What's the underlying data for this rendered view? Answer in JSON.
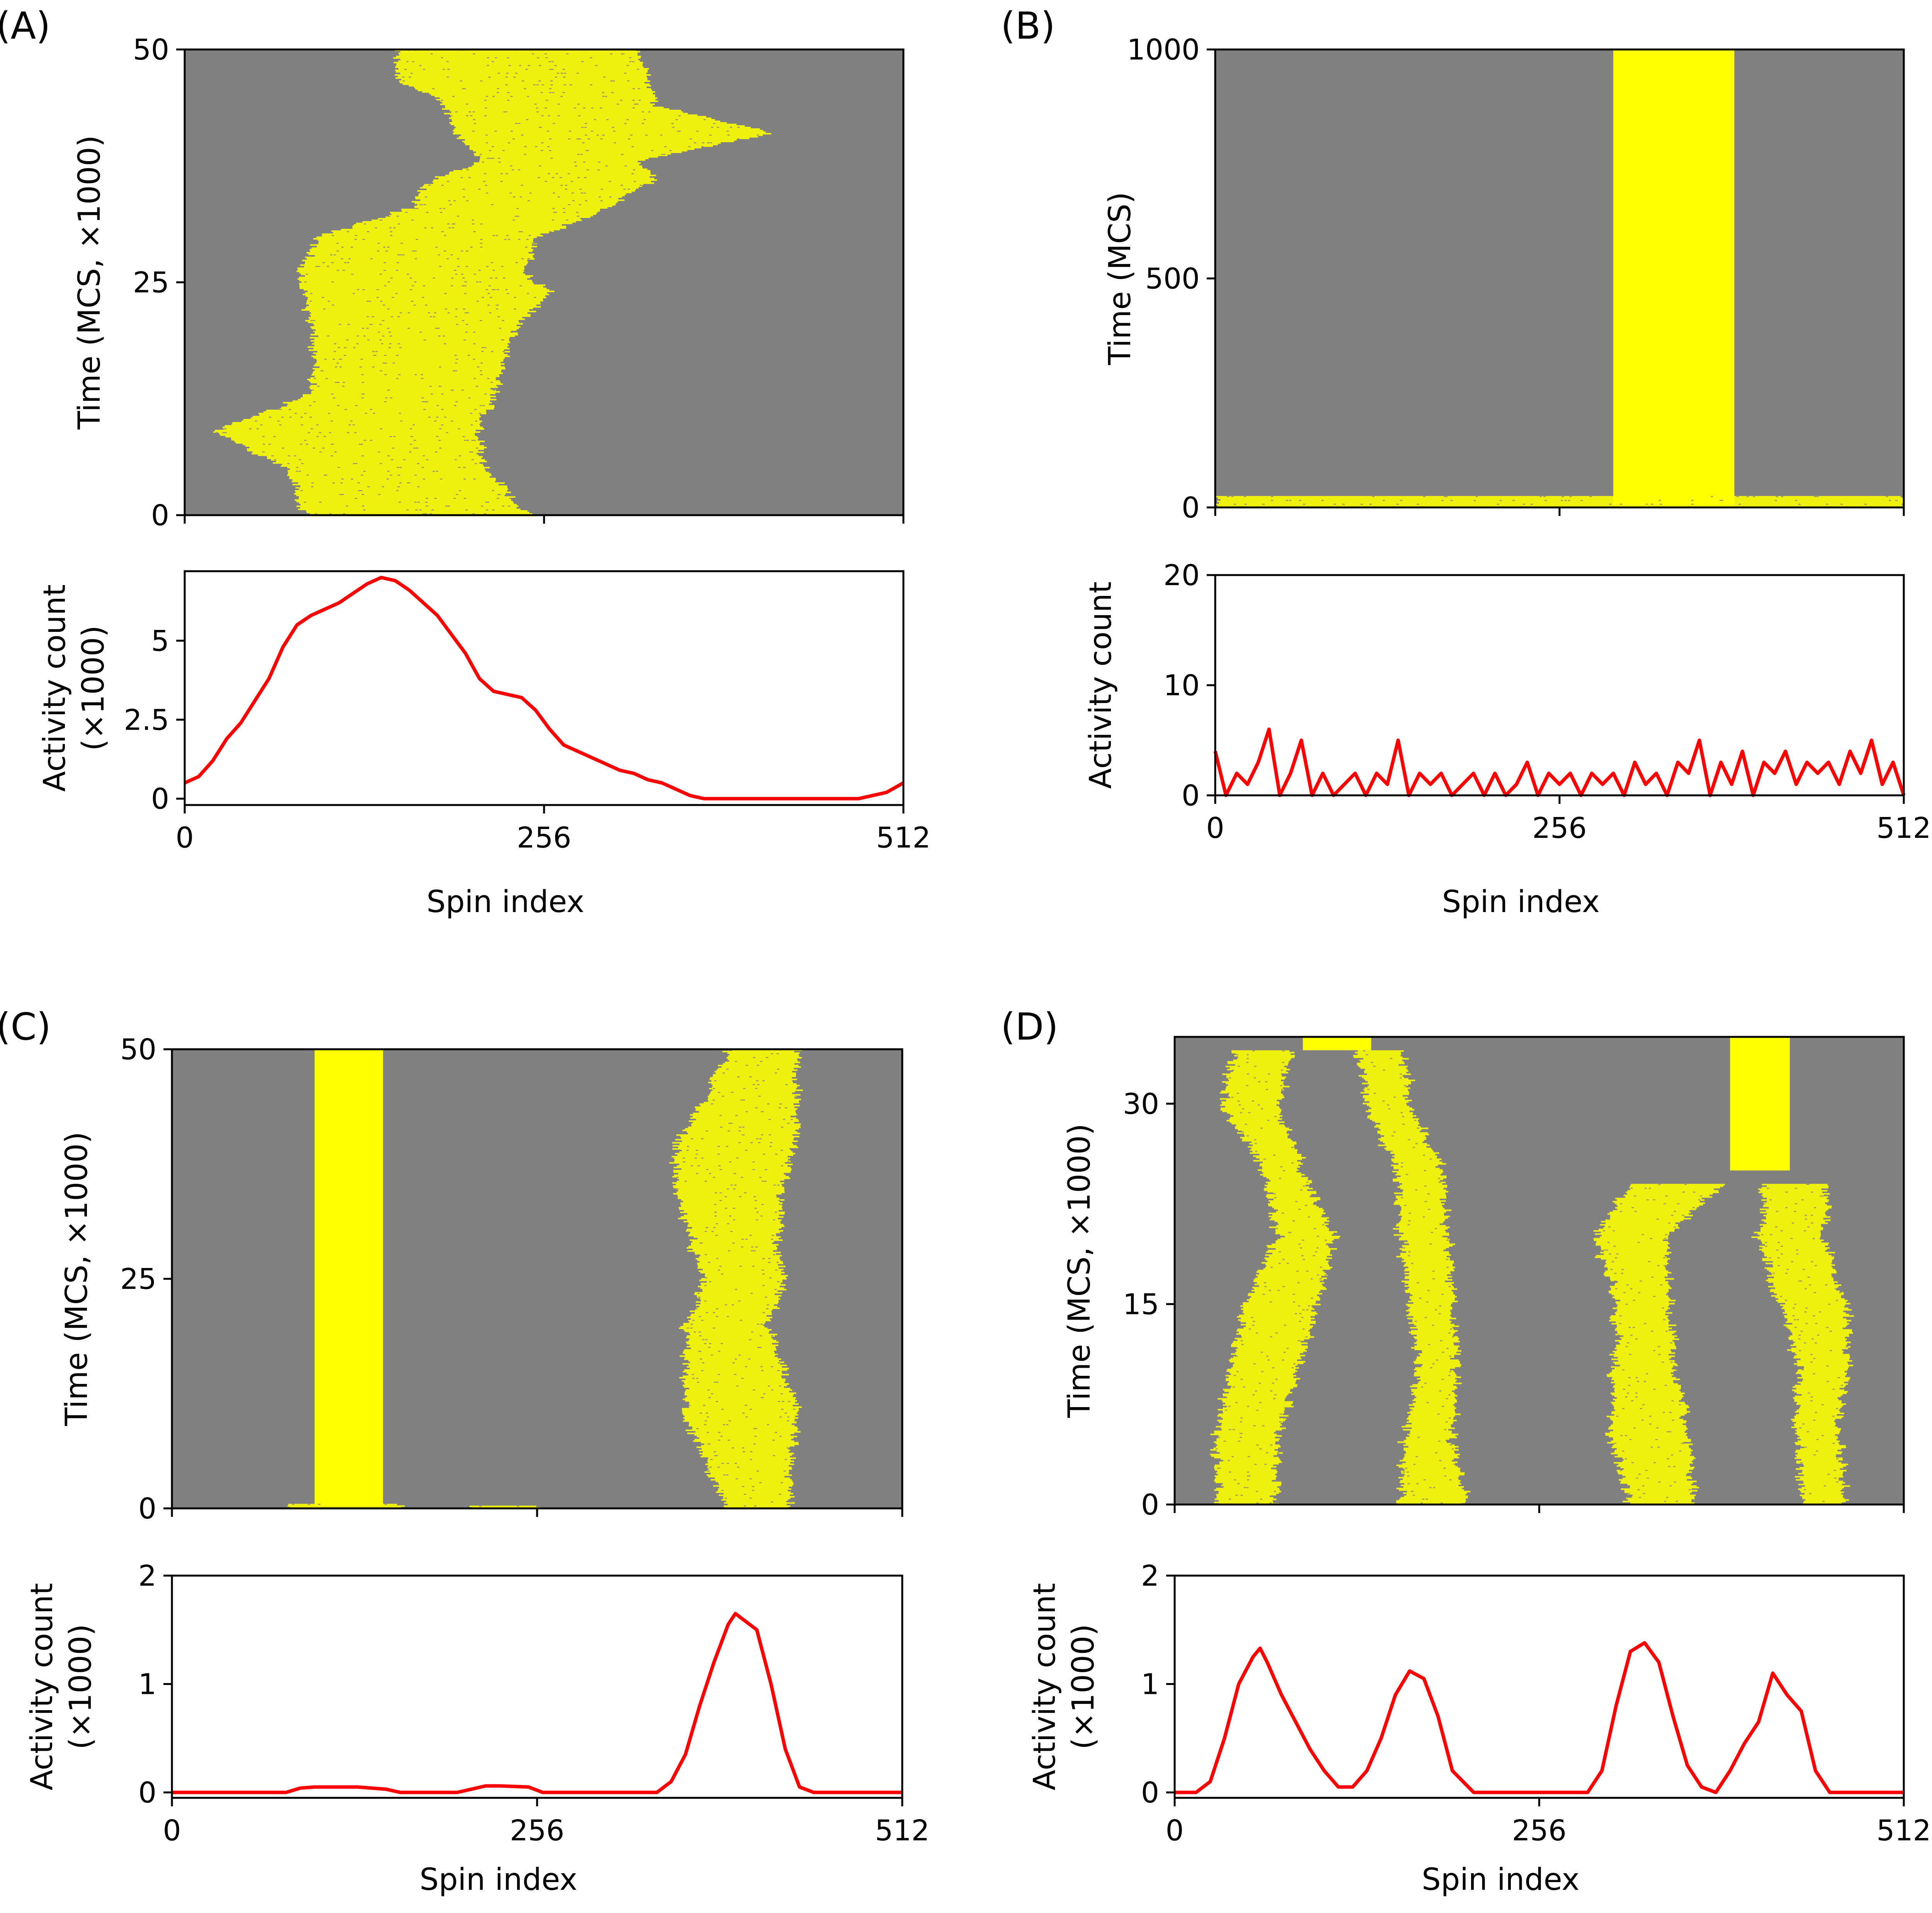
{
  "colors": {
    "background": "#808080",
    "active": "#ffff00",
    "activity_line": "#ff0000",
    "axes": "#000000"
  },
  "chart_data": [
    {
      "panel": "(A)",
      "raster": {
        "type": "heatmap",
        "ylabel": "Time (MCS, ×1000)",
        "xlim": [
          0,
          512
        ],
        "ylim": [
          0,
          50
        ],
        "xticks": [
          0,
          256,
          512
        ],
        "yticks": [
          0,
          25,
          50
        ],
        "ytick_labels": [
          "0",
          "25",
          "50"
        ],
        "bands": [
          {
            "style": "noisy",
            "edges": [
              {
                "t": 0,
                "l": 85,
                "r": 246
              },
              {
                "t": 5,
                "l": 75,
                "r": 215
              },
              {
                "t": 9,
                "l": 20,
                "r": 210
              },
              {
                "t": 11,
                "l": 58,
                "r": 215
              },
              {
                "t": 13,
                "l": 88,
                "r": 220
              },
              {
                "t": 16,
                "l": 92,
                "r": 225
              },
              {
                "t": 20,
                "l": 90,
                "r": 235
              },
              {
                "t": 24,
                "l": 85,
                "r": 262
              },
              {
                "t": 26,
                "l": 80,
                "r": 240
              },
              {
                "t": 30,
                "l": 98,
                "r": 255
              },
              {
                "t": 33,
                "l": 160,
                "r": 300
              },
              {
                "t": 36,
                "l": 175,
                "r": 335
              },
              {
                "t": 38,
                "l": 210,
                "r": 320
              },
              {
                "t": 41,
                "l": 195,
                "r": 420
              },
              {
                "t": 44,
                "l": 185,
                "r": 335
              },
              {
                "t": 47,
                "l": 150,
                "r": 330
              },
              {
                "t": 50,
                "l": 150,
                "r": 320
              }
            ]
          }
        ]
      },
      "activity": {
        "type": "line",
        "xlabel": "Spin index",
        "ylabel": "Activity count (×1000)",
        "ylabel_lines": [
          "Activity count",
          "(×1000)"
        ],
        "xlim": [
          0,
          512
        ],
        "ylim": [
          -0.2,
          7.2
        ],
        "xticks": [
          0,
          256,
          512
        ],
        "yticks": [
          0,
          2.5,
          5
        ],
        "ytick_labels": [
          "0",
          "2.5",
          "5"
        ],
        "x": [
          0,
          10,
          20,
          30,
          40,
          50,
          60,
          70,
          80,
          90,
          100,
          110,
          120,
          130,
          140,
          150,
          160,
          170,
          180,
          190,
          200,
          210,
          220,
          230,
          240,
          250,
          260,
          270,
          280,
          290,
          300,
          310,
          320,
          330,
          340,
          350,
          360,
          370,
          380,
          390,
          400,
          410,
          420,
          430,
          440,
          450,
          460,
          470,
          480,
          490,
          500,
          512
        ],
        "values": [
          0.5,
          0.7,
          1.2,
          1.9,
          2.4,
          3.1,
          3.8,
          4.8,
          5.5,
          5.8,
          6.0,
          6.2,
          6.5,
          6.8,
          7.0,
          6.9,
          6.6,
          6.2,
          5.8,
          5.2,
          4.6,
          3.8,
          3.4,
          3.3,
          3.2,
          2.8,
          2.2,
          1.7,
          1.5,
          1.3,
          1.1,
          0.9,
          0.8,
          0.6,
          0.5,
          0.3,
          0.1,
          0.0,
          0.0,
          0.0,
          0.0,
          0.0,
          0.0,
          0.0,
          0.0,
          0.0,
          0.0,
          0.0,
          0.0,
          0.1,
          0.2,
          0.5
        ]
      }
    },
    {
      "panel": "(B)",
      "raster": {
        "type": "heatmap",
        "ylabel": "Time (MCS)",
        "xlim": [
          0,
          512
        ],
        "ylim": [
          0,
          1000
        ],
        "xticks": [
          0,
          256,
          512
        ],
        "yticks": [
          0,
          500,
          1000
        ],
        "ytick_labels": [
          "0",
          "500",
          "1000"
        ],
        "bands": [
          {
            "style": "solid",
            "edges": [
              {
                "t": 0,
                "l": 296,
                "r": 386
              },
              {
                "t": 1000,
                "l": 296,
                "r": 386
              }
            ]
          },
          {
            "style": "noisy",
            "edges": [
              {
                "t": 0,
                "l": 0,
                "r": 512
              },
              {
                "t": 25,
                "l": 0,
                "r": 512
              }
            ]
          }
        ]
      },
      "activity": {
        "type": "line",
        "xlabel": "Spin index",
        "ylabel": "Activity count",
        "ylabel_lines": [
          "Activity count"
        ],
        "xlim": [
          0,
          512
        ],
        "ylim": [
          0,
          20
        ],
        "xticks": [
          0,
          256,
          512
        ],
        "yticks": [
          0,
          10,
          20
        ],
        "ytick_labels": [
          "0",
          "10",
          "20"
        ],
        "x": [
          0,
          8,
          16,
          24,
          32,
          40,
          48,
          56,
          64,
          72,
          80,
          88,
          96,
          104,
          112,
          120,
          128,
          136,
          144,
          152,
          160,
          168,
          176,
          184,
          192,
          200,
          208,
          216,
          224,
          232,
          240,
          248,
          256,
          264,
          272,
          280,
          288,
          296,
          304,
          312,
          320,
          328,
          336,
          344,
          352,
          360,
          368,
          376,
          384,
          392,
          400,
          408,
          416,
          424,
          432,
          440,
          448,
          456,
          464,
          472,
          480,
          488,
          496,
          504,
          512
        ],
        "values": [
          4,
          0,
          2,
          1,
          3,
          6,
          0,
          2,
          5,
          0,
          2,
          0,
          1,
          2,
          0,
          2,
          1,
          5,
          0,
          2,
          1,
          2,
          0,
          1,
          2,
          0,
          2,
          0,
          1,
          3,
          0,
          2,
          1,
          2,
          0,
          2,
          1,
          2,
          0,
          3,
          1,
          2,
          0,
          3,
          2,
          5,
          0,
          3,
          1,
          4,
          0,
          3,
          2,
          4,
          1,
          3,
          2,
          3,
          1,
          4,
          2,
          5,
          1,
          3,
          0
        ]
      }
    },
    {
      "panel": "(C)",
      "raster": {
        "type": "heatmap",
        "ylabel": "Time (MCS, ×1000)",
        "xlim": [
          0,
          512
        ],
        "ylim": [
          0,
          50
        ],
        "xticks": [
          0,
          256,
          512
        ],
        "yticks": [
          0,
          25,
          50
        ],
        "ytick_labels": [
          "0",
          "25",
          "50"
        ],
        "bands": [
          {
            "style": "solid",
            "edges": [
              {
                "t": 0.3,
                "l": 100,
                "r": 148
              },
              {
                "t": 50,
                "l": 100,
                "r": 148
              }
            ]
          },
          {
            "style": "noisy",
            "edges": [
              {
                "t": 0,
                "l": 82,
                "r": 160
              },
              {
                "t": 0.5,
                "l": 82,
                "r": 160
              }
            ]
          },
          {
            "style": "noisy",
            "edges": [
              {
                "t": 0,
                "l": 210,
                "r": 255
              },
              {
                "t": 0.3,
                "l": 210,
                "r": 255
              }
            ]
          },
          {
            "style": "noisy",
            "edges": [
              {
                "t": 0,
                "l": 390,
                "r": 435
              },
              {
                "t": 5,
                "l": 372,
                "r": 432
              },
              {
                "t": 10,
                "l": 360,
                "r": 440
              },
              {
                "t": 15,
                "l": 358,
                "r": 428
              },
              {
                "t": 20,
                "l": 360,
                "r": 418
              },
              {
                "t": 25,
                "l": 372,
                "r": 428
              },
              {
                "t": 30,
                "l": 362,
                "r": 425
              },
              {
                "t": 35,
                "l": 352,
                "r": 428
              },
              {
                "t": 40,
                "l": 355,
                "r": 438
              },
              {
                "t": 45,
                "l": 375,
                "r": 438
              },
              {
                "t": 50,
                "l": 390,
                "r": 438
              }
            ]
          }
        ]
      },
      "activity": {
        "type": "line",
        "xlabel": "Spin index",
        "ylabel": "Activity count (×1000)",
        "ylabel_lines": [
          "Activity count",
          "(×1000)"
        ],
        "xlim": [
          0,
          512
        ],
        "ylim": [
          -0.05,
          2
        ],
        "xticks": [
          0,
          256,
          512
        ],
        "yticks": [
          0,
          1,
          2
        ],
        "ytick_labels": [
          "0",
          "1",
          "2"
        ],
        "x": [
          0,
          20,
          40,
          60,
          80,
          90,
          100,
          110,
          130,
          150,
          160,
          180,
          200,
          210,
          220,
          230,
          250,
          260,
          280,
          300,
          320,
          340,
          350,
          360,
          370,
          380,
          390,
          395,
          400,
          410,
          420,
          430,
          440,
          450,
          470,
          490,
          512
        ],
        "values": [
          0,
          0,
          0,
          0,
          0,
          0.04,
          0.05,
          0.05,
          0.05,
          0.03,
          0,
          0,
          0,
          0.03,
          0.06,
          0.06,
          0.05,
          0,
          0,
          0,
          0,
          0,
          0.1,
          0.35,
          0.8,
          1.2,
          1.55,
          1.65,
          1.6,
          1.5,
          1.0,
          0.4,
          0.05,
          0,
          0,
          0,
          0
        ]
      }
    },
    {
      "panel": "(D)",
      "raster": {
        "type": "heatmap",
        "ylabel": "Time (MCS, ×1000)",
        "xlim": [
          0,
          512
        ],
        "ylim": [
          0,
          35
        ],
        "xticks": [
          0,
          256,
          512
        ],
        "yticks": [
          0,
          15,
          30
        ],
        "ytick_labels": [
          "0",
          "15",
          "30"
        ],
        "bands": [
          {
            "style": "noisy",
            "edges": [
              {
                "t": 0,
                "l": 30,
                "r": 72
              },
              {
                "t": 5,
                "l": 28,
                "r": 72
              },
              {
                "t": 10,
                "l": 40,
                "r": 88
              },
              {
                "t": 15,
                "l": 48,
                "r": 100
              },
              {
                "t": 20,
                "l": 72,
                "r": 112
              },
              {
                "t": 25,
                "l": 62,
                "r": 90
              },
              {
                "t": 30,
                "l": 32,
                "r": 72
              },
              {
                "t": 34,
                "l": 42,
                "r": 82
              }
            ]
          },
          {
            "style": "noisy",
            "edges": [
              {
                "t": 0,
                "l": 158,
                "r": 205
              },
              {
                "t": 5,
                "l": 162,
                "r": 195
              },
              {
                "t": 10,
                "l": 170,
                "r": 198
              },
              {
                "t": 15,
                "l": 165,
                "r": 195
              },
              {
                "t": 20,
                "l": 158,
                "r": 192
              },
              {
                "t": 25,
                "l": 155,
                "r": 188
              },
              {
                "t": 30,
                "l": 135,
                "r": 165
              },
              {
                "t": 34,
                "l": 130,
                "r": 162
              }
            ]
          },
          {
            "style": "solid",
            "edges": [
              {
                "t": 34,
                "l": 90,
                "r": 138
              },
              {
                "t": 35,
                "l": 90,
                "r": 138
              }
            ]
          },
          {
            "style": "noisy",
            "edges": [
              {
                "t": 0,
                "l": 320,
                "r": 365
              },
              {
                "t": 5,
                "l": 305,
                "r": 360
              },
              {
                "t": 10,
                "l": 308,
                "r": 352
              },
              {
                "t": 15,
                "l": 312,
                "r": 348
              },
              {
                "t": 20,
                "l": 295,
                "r": 345
              },
              {
                "t": 24,
                "l": 320,
                "r": 385
              }
            ]
          },
          {
            "style": "noisy",
            "edges": [
              {
                "t": 0,
                "l": 440,
                "r": 470
              },
              {
                "t": 5,
                "l": 438,
                "r": 468
              },
              {
                "t": 10,
                "l": 438,
                "r": 472
              },
              {
                "t": 15,
                "l": 425,
                "r": 472
              },
              {
                "t": 20,
                "l": 410,
                "r": 455
              },
              {
                "t": 24,
                "l": 415,
                "r": 458
              }
            ]
          },
          {
            "style": "solid",
            "edges": [
              {
                "t": 25,
                "l": 390,
                "r": 432
              },
              {
                "t": 35,
                "l": 390,
                "r": 432
              }
            ]
          }
        ]
      },
      "activity": {
        "type": "line",
        "xlabel": "Spin index",
        "ylabel": "Activity count (×1000)",
        "ylabel_lines": [
          "Activity count",
          "(×1000)"
        ],
        "xlim": [
          0,
          512
        ],
        "ylim": [
          -0.05,
          2
        ],
        "xticks": [
          0,
          256,
          512
        ],
        "yticks": [
          0,
          1,
          2
        ],
        "ytick_labels": [
          "0",
          "1",
          "2"
        ],
        "x": [
          0,
          15,
          25,
          35,
          45,
          55,
          60,
          65,
          75,
          85,
          95,
          105,
          115,
          125,
          135,
          145,
          155,
          165,
          175,
          185,
          195,
          210,
          230,
          250,
          270,
          290,
          300,
          310,
          320,
          330,
          340,
          350,
          360,
          370,
          380,
          390,
          400,
          410,
          420,
          430,
          440,
          450,
          460,
          480,
          512
        ],
        "values": [
          0,
          0,
          0.1,
          0.5,
          1.0,
          1.25,
          1.33,
          1.2,
          0.9,
          0.65,
          0.4,
          0.2,
          0.05,
          0.05,
          0.2,
          0.5,
          0.9,
          1.12,
          1.05,
          0.7,
          0.2,
          0,
          0,
          0,
          0,
          0,
          0.2,
          0.8,
          1.3,
          1.38,
          1.2,
          0.7,
          0.25,
          0.05,
          0,
          0.2,
          0.45,
          0.65,
          1.1,
          0.9,
          0.75,
          0.2,
          0,
          0,
          0
        ]
      }
    }
  ]
}
